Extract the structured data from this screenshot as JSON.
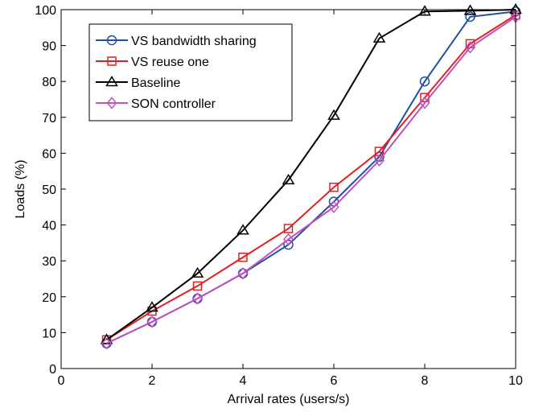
{
  "chart_data": {
    "type": "line",
    "title": "",
    "xlabel": "Arrival rates (users/s)",
    "ylabel": "Loads (%)",
    "xlim": [
      0,
      10
    ],
    "ylim": [
      0,
      100
    ],
    "xticks": [
      0,
      2,
      4,
      6,
      8,
      10
    ],
    "yticks": [
      0,
      10,
      20,
      30,
      40,
      50,
      60,
      70,
      80,
      90,
      100
    ],
    "grid": false,
    "legend_position": "top-left",
    "x": [
      1,
      2,
      3,
      4,
      5,
      6,
      7,
      8,
      9,
      10
    ],
    "series": [
      {
        "name": "VS bandwidth sharing",
        "color": "#2050a0",
        "marker": "circle",
        "values": [
          7,
          13,
          19.5,
          26.5,
          34.5,
          46.5,
          59,
          80,
          98,
          99.5
        ]
      },
      {
        "name": "VS reuse one",
        "color": "#e02020",
        "marker": "square",
        "values": [
          8,
          16,
          23,
          31,
          39,
          50.5,
          60.5,
          75.5,
          90.5,
          98.5
        ]
      },
      {
        "name": "Baseline",
        "color": "#000000",
        "marker": "triangle",
        "values": [
          8,
          17,
          26.5,
          38.5,
          52.5,
          70.5,
          92,
          99.5,
          99.7,
          100
        ]
      },
      {
        "name": "SON controller",
        "color": "#c050c0",
        "marker": "diamond",
        "values": [
          7,
          13,
          19.5,
          26.5,
          36,
          45,
          58,
          74,
          89.5,
          98
        ]
      }
    ]
  }
}
